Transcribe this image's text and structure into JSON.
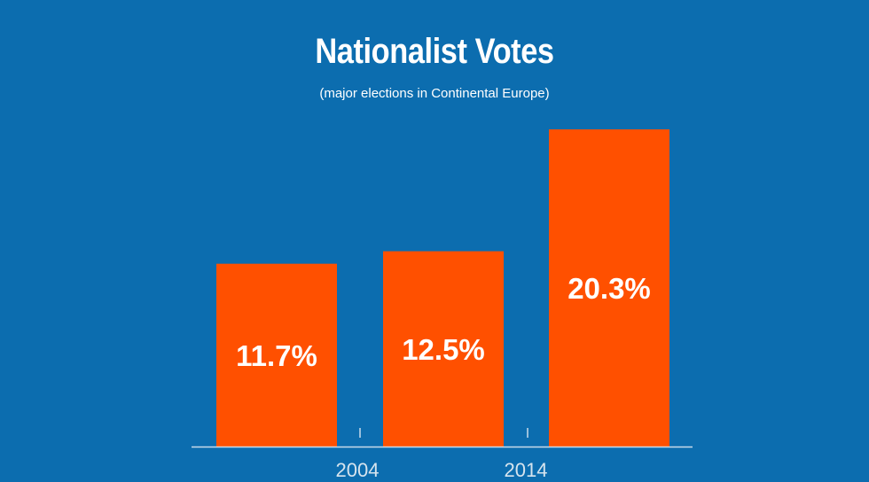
{
  "colors": {
    "background": "#0C6DAF",
    "bar": "#FF5000",
    "axis": "#C9DCEA",
    "bar_label": "#FFFFFF"
  },
  "chart_data": {
    "type": "bar",
    "title": "Nationalist Votes",
    "subtitle": "(major elections in Continental Europe)",
    "values": [
      11.7,
      12.5,
      20.3
    ],
    "value_labels": [
      "11.7%",
      "12.5%",
      "20.3%"
    ],
    "x_tick_labels": [
      "2004",
      "2014"
    ],
    "ylim": [
      0,
      21
    ],
    "grid": false
  }
}
